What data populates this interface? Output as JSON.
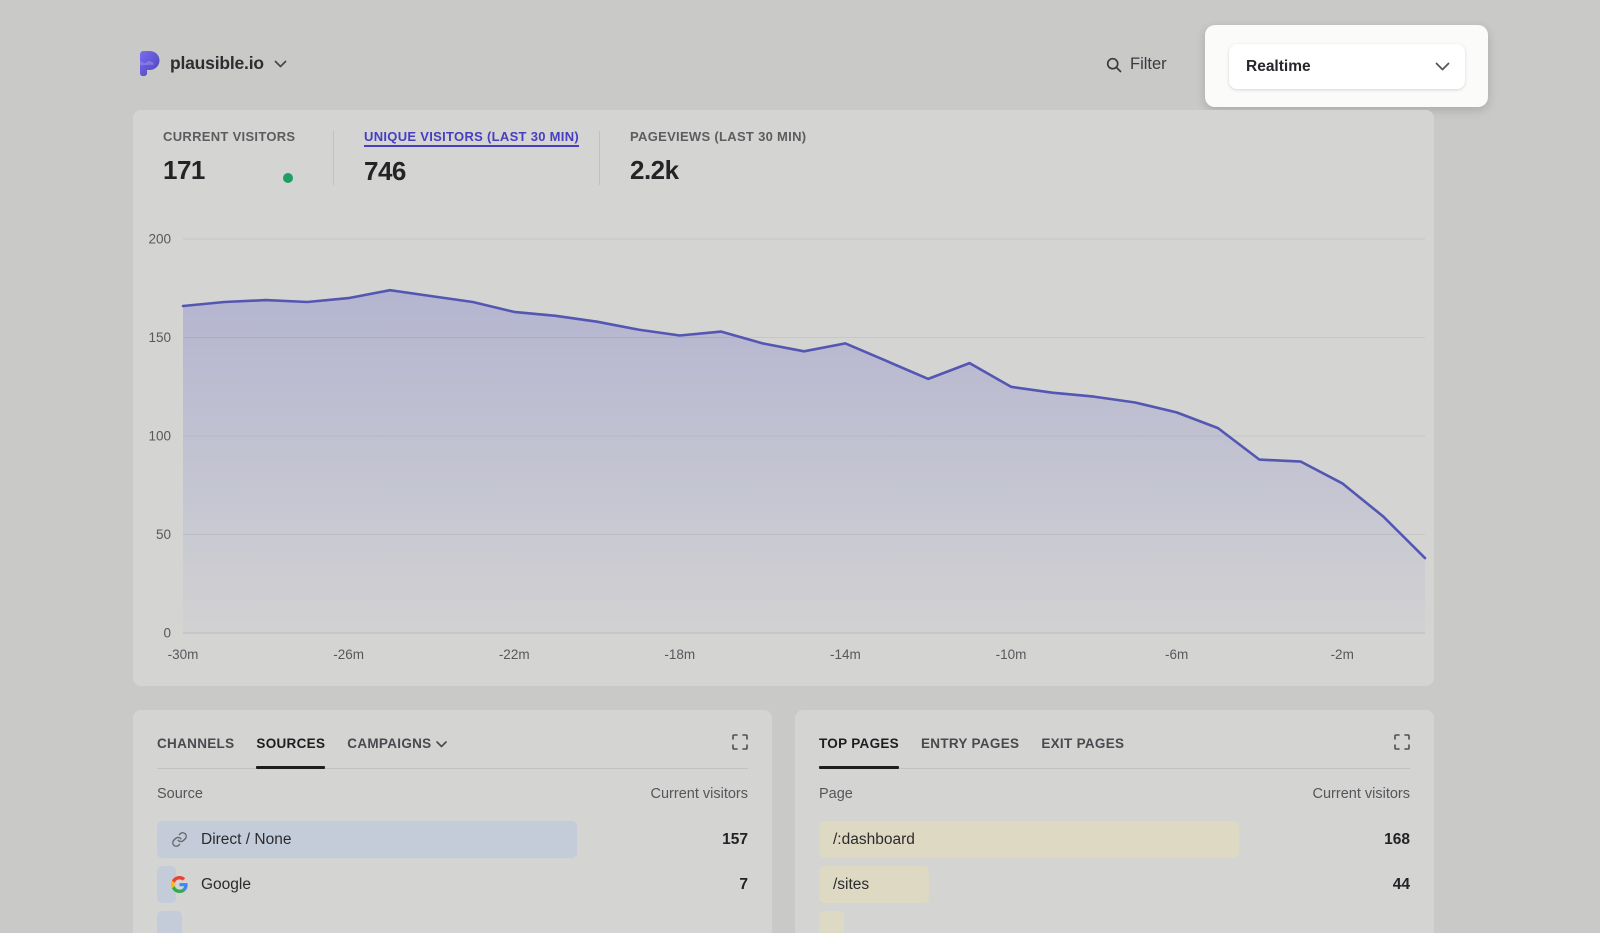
{
  "header": {
    "site_name": "plausible.io",
    "filter_label": "Filter",
    "period_selector": {
      "value": "Realtime"
    }
  },
  "stats": [
    {
      "label": "CURRENT VISITORS",
      "value": "171",
      "live": true
    },
    {
      "label": "UNIQUE VISITORS (LAST 30 MIN)",
      "value": "746",
      "active": true
    },
    {
      "label": "PAGEVIEWS (LAST 30 MIN)",
      "value": "2.2k"
    }
  ],
  "chart_data": {
    "type": "area",
    "title": "Unique visitors over the last 30 minutes",
    "x": [
      -30,
      -29,
      -28,
      -27,
      -26,
      -25,
      -24,
      -23,
      -22,
      -21,
      -20,
      -19,
      -18,
      -17,
      -16,
      -15,
      -14,
      -13,
      -12,
      -11,
      -10,
      -9,
      -8,
      -7,
      -6,
      -5,
      -4,
      -3,
      -2,
      -1,
      0
    ],
    "values": [
      166,
      168,
      169,
      168,
      170,
      174,
      171,
      168,
      163,
      161,
      158,
      154,
      151,
      153,
      147,
      143,
      147,
      138,
      129,
      137,
      125,
      122,
      120,
      117,
      112,
      104,
      88,
      87,
      76,
      59,
      38
    ],
    "x_tick_positions": [
      -30,
      -26,
      -22,
      -18,
      -14,
      -10,
      -6,
      -2
    ],
    "x_tick_labels": [
      "-30m",
      "-26m",
      "-22m",
      "-18m",
      "-14m",
      "-10m",
      "-6m",
      "-2m"
    ],
    "y_ticks": [
      0,
      50,
      100,
      150,
      200
    ],
    "ylim": [
      0,
      200
    ],
    "grid": true,
    "legend": "none",
    "line_color": "#5457b2",
    "fill_top_color": "rgba(88,91,199,0.26)",
    "fill_bottom_color": "rgba(88,91,199,0.02)"
  },
  "sources_panel": {
    "tabs": [
      {
        "label": "CHANNELS",
        "active": false,
        "has_dropdown": false
      },
      {
        "label": "SOURCES",
        "active": true,
        "has_dropdown": false
      },
      {
        "label": "CAMPAIGNS",
        "active": false,
        "has_dropdown": true
      }
    ],
    "col_left": "Source",
    "col_right": "Current visitors",
    "rows": [
      {
        "label": "Direct / None",
        "value": 157,
        "icon": "link"
      },
      {
        "label": "Google",
        "value": 7,
        "icon": "google"
      }
    ],
    "partial_row_bar_pct": 4.2,
    "bar_color": "#c4ccd9"
  },
  "pages_panel": {
    "tabs": [
      {
        "label": "TOP PAGES",
        "active": true,
        "has_dropdown": false
      },
      {
        "label": "ENTRY PAGES",
        "active": false,
        "has_dropdown": false
      },
      {
        "label": "EXIT PAGES",
        "active": false,
        "has_dropdown": false
      }
    ],
    "col_left": "Page",
    "col_right": "Current visitors",
    "rows": [
      {
        "label": "/:dashboard",
        "value": 168,
        "icon": null
      },
      {
        "label": "/sites",
        "value": 44,
        "icon": null
      }
    ],
    "partial_row_bar_pct": 4.2,
    "bar_color": "#ded9c3"
  },
  "colors": {
    "page_bg": "#c9c9c8",
    "card_bg": "#d4d4d3",
    "accent_indigo": "#473ec0",
    "live_green": "#1d9f61",
    "active_tab": "#1e1e21"
  }
}
